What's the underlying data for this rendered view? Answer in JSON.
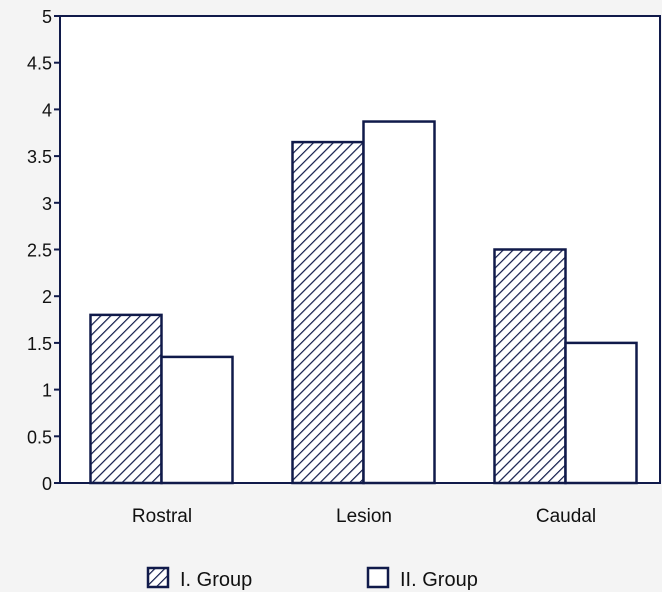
{
  "chart_data": {
    "type": "bar",
    "categories": [
      "Rostral",
      "Lesion",
      "Caudal"
    ],
    "series": [
      {
        "name": "I. Group",
        "values": [
          1.8,
          3.65,
          2.5
        ],
        "pattern": "hatched"
      },
      {
        "name": "II. Group",
        "values": [
          1.35,
          3.87,
          1.5
        ],
        "pattern": "open"
      }
    ],
    "yticks": [
      "0",
      "0.5",
      "1",
      "1.5",
      "2",
      "2.5",
      "3",
      "3.5",
      "4",
      "4.5",
      "5"
    ],
    "ylim": [
      0,
      5
    ],
    "grid": false,
    "legend_position": "bottom",
    "colors": {
      "stroke": "#101a4a",
      "hatch": "#101a4a",
      "fill_open": "#ffffff",
      "background": "#f4f4f4"
    }
  }
}
